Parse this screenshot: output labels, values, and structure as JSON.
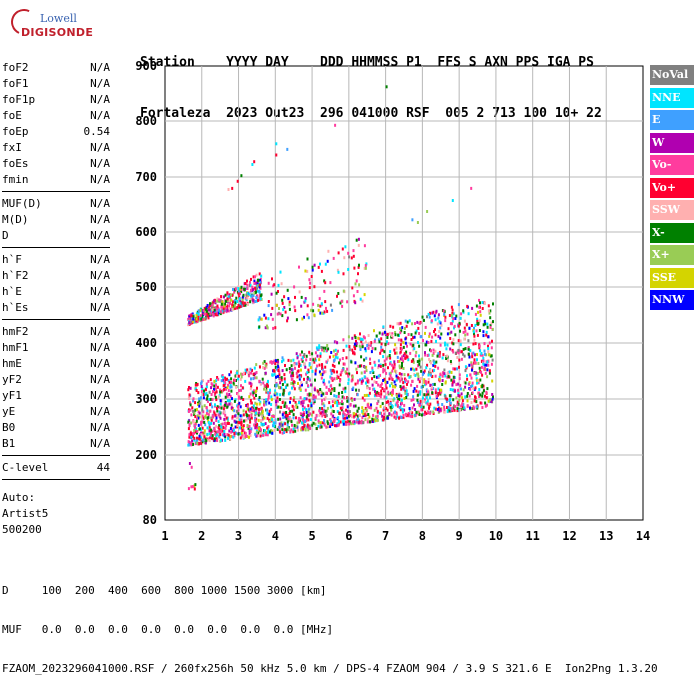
{
  "logo": {
    "line1": "Lowell",
    "line2": "DIGISONDE"
  },
  "header": {
    "line1": "Station    YYYY DAY    DDD HHMMSS P1  FFS S AXN PPS IGA PS",
    "line2": "Fortaleza  2023 Out23  296 041000 RSF  005 2 713 100 10+ 22"
  },
  "params_group1": [
    {
      "name": "foF2",
      "value": "N/A"
    },
    {
      "name": "foF1",
      "value": "N/A"
    },
    {
      "name": "foF1p",
      "value": "N/A"
    },
    {
      "name": "foE",
      "value": "N/A"
    },
    {
      "name": "foEp",
      "value": "0.54"
    },
    {
      "name": "fxI",
      "value": "N/A"
    },
    {
      "name": "foEs",
      "value": "N/A"
    },
    {
      "name": "fmin",
      "value": "N/A"
    }
  ],
  "params_group2": [
    {
      "name": "MUF(D)",
      "value": "N/A"
    },
    {
      "name": "M(D)",
      "value": "N/A"
    },
    {
      "name": "D",
      "value": "N/A"
    }
  ],
  "params_group3": [
    {
      "name": "h`F",
      "value": "N/A"
    },
    {
      "name": "h`F2",
      "value": "N/A"
    },
    {
      "name": "h`E",
      "value": "N/A"
    },
    {
      "name": "h`Es",
      "value": "N/A"
    }
  ],
  "params_group4": [
    {
      "name": "hmF2",
      "value": "N/A"
    },
    {
      "name": "hmF1",
      "value": "N/A"
    },
    {
      "name": "hmE",
      "value": "N/A"
    },
    {
      "name": "yF2",
      "value": "N/A"
    },
    {
      "name": "yF1",
      "value": "N/A"
    },
    {
      "name": "yE",
      "value": "N/A"
    },
    {
      "name": "B0",
      "value": "N/A"
    },
    {
      "name": "B1",
      "value": "N/A"
    }
  ],
  "params_group5": [
    {
      "name": "C-level",
      "value": "44"
    }
  ],
  "auto_info": {
    "line1": "Auto:",
    "line2": "Artist5",
    "line3": "500200"
  },
  "legend": [
    {
      "label": "NoVal",
      "color": "#808080"
    },
    {
      "label": "NNE",
      "color": "#00e5ff"
    },
    {
      "label": "E",
      "color": "#3fa0ff"
    },
    {
      "label": "W",
      "color": "#b000b0"
    },
    {
      "label": "Vo-",
      "color": "#ff3c9e"
    },
    {
      "label": "Vo+",
      "color": "#ff0030"
    },
    {
      "label": "SSW",
      "color": "#ffb0b0"
    },
    {
      "label": "X-",
      "color": "#008000"
    },
    {
      "label": "X+",
      "color": "#99cc55"
    },
    {
      "label": "SSE",
      "color": "#d4d400"
    },
    {
      "label": "NNW",
      "color": "#0000ff"
    }
  ],
  "footer": {
    "line1": "D     100  200  400  600  800 1000 1500 3000 [km]",
    "line2": "MUF   0.0  0.0  0.0  0.0  0.0  0.0  0.0  0.0 [MHz]",
    "line3": "FZAOM_2023296041000.RSF / 260fx256h 50 kHz 5.0 km / DPS-4 FZAOM 904 / 3.9 S 321.6 E  Ion2Png 1.3.20"
  },
  "chart_data": {
    "type": "scatter",
    "xlim": [
      1,
      14
    ],
    "ylim": [
      80,
      900
    ],
    "x_ticks": [
      1,
      2,
      3,
      4,
      5,
      6,
      7,
      8,
      9,
      10,
      11,
      12,
      13,
      14
    ],
    "y_ticks": [
      80,
      200,
      300,
      400,
      500,
      600,
      700,
      800,
      900
    ],
    "grid": true,
    "clusters": [
      {
        "name": "F-trace-lower",
        "x_from": 1.6,
        "x_to": 9.9,
        "y_from": [
          220,
          330
        ],
        "y_to": [
          290,
          490
        ],
        "density": 2600
      },
      {
        "name": "F-trace-upper",
        "x_from": 1.6,
        "x_to": 3.6,
        "y_from": [
          435,
          450
        ],
        "y_to": [
          480,
          530
        ],
        "density": 420
      },
      {
        "name": "scattered-upper",
        "x_from": 3.5,
        "x_to": 6.5,
        "y_from": [
          420,
          520
        ],
        "y_to": [
          480,
          600
        ],
        "density": 160
      },
      {
        "name": "low-echo",
        "x_from": 1.6,
        "x_to": 1.8,
        "y_from": [
          140,
          150
        ],
        "y_to": [
          140,
          150
        ],
        "density": 6
      }
    ],
    "isolated_points": [
      {
        "x": 7.0,
        "y": 865
      },
      {
        "x": 5.6,
        "y": 795
      },
      {
        "x": 4.0,
        "y": 762
      },
      {
        "x": 4.3,
        "y": 752
      },
      {
        "x": 4.0,
        "y": 742
      },
      {
        "x": 3.4,
        "y": 730
      },
      {
        "x": 3.35,
        "y": 725
      },
      {
        "x": 3.05,
        "y": 705
      },
      {
        "x": 2.95,
        "y": 695
      },
      {
        "x": 2.8,
        "y": 682
      },
      {
        "x": 2.7,
        "y": 680
      },
      {
        "x": 9.3,
        "y": 682
      },
      {
        "x": 8.8,
        "y": 660
      },
      {
        "x": 8.1,
        "y": 640
      },
      {
        "x": 7.7,
        "y": 625
      },
      {
        "x": 7.85,
        "y": 620
      },
      {
        "x": 1.7,
        "y": 180
      },
      {
        "x": 1.65,
        "y": 187
      }
    ]
  }
}
